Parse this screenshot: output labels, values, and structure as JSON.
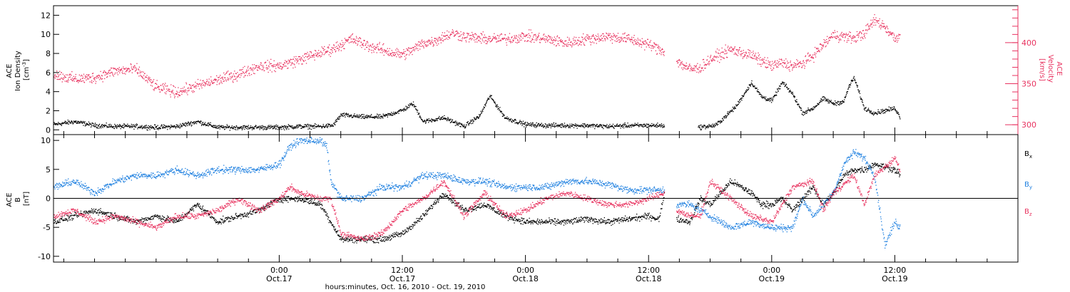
{
  "colors": {
    "black": "#000000",
    "red": "#e8325f",
    "blue": "#1f80e0"
  },
  "x_axis": {
    "range_hours": [
      -22,
      72
    ],
    "title": "hours:minutes, Oct. 16, 2010 - Oct. 19, 2010",
    "major_ticks": [
      {
        "hour": 0,
        "time": "0:00",
        "date": "Oct.17"
      },
      {
        "hour": 12,
        "time": "12:00",
        "date": "Oct.17"
      },
      {
        "hour": 24,
        "time": "0:00",
        "date": "Oct.18"
      },
      {
        "hour": 36,
        "time": "12:00",
        "date": "Oct.18"
      },
      {
        "hour": 48,
        "time": "0:00",
        "date": "Oct.19"
      },
      {
        "hour": 60,
        "time": "12:00",
        "date": "Oct.19"
      }
    ]
  },
  "chart_data": [
    {
      "type": "scatter",
      "panel": "top",
      "left_axis": {
        "label_lines": [
          "ACE",
          "Ion Density"
        ],
        "unit_base": "[cm",
        "unit_sup": "-3",
        "unit_end": "]",
        "ylim": [
          -0.5,
          13
        ],
        "ticks": [
          "0",
          "2",
          "4",
          "6",
          "8",
          "10",
          "12"
        ]
      },
      "right_axis": {
        "label_lines": [
          "ACE",
          "Velocity",
          "[km/s]"
        ],
        "ylim": [
          288,
          445
        ],
        "ticks": [
          "300",
          "350",
          "400"
        ]
      },
      "series": [
        {
          "color": "#000000",
          "axis": "left",
          "segments": [
            [
              -22,
              37.5
            ],
            [
              40.8,
              60.5
            ]
          ],
          "x": [
            -22,
            -20,
            -18,
            -16,
            -14,
            -12,
            -10,
            -8,
            -6,
            -4,
            -2,
            0,
            2,
            4,
            5.2,
            6,
            8,
            10,
            12,
            13,
            14,
            16,
            18,
            19.5,
            20.5,
            22,
            24,
            26,
            28,
            30,
            32,
            34,
            36,
            37.5,
            40.8,
            42.5,
            43.5,
            44.5,
            46,
            47,
            48,
            49,
            50,
            51,
            52,
            53,
            54,
            55,
            55.5,
            56,
            57,
            58,
            60,
            60.5
          ],
          "y": [
            0.6,
            0.9,
            0.5,
            0.4,
            0.4,
            0.3,
            0.4,
            0.9,
            0.3,
            0.3,
            0.3,
            0.3,
            0.4,
            0.4,
            0.5,
            1.6,
            1.4,
            1.4,
            2.1,
            2.8,
            0.9,
            1.3,
            0.4,
            1.5,
            3.6,
            1.3,
            0.6,
            0.5,
            0.5,
            0.5,
            0.4,
            0.5,
            0.5,
            0.5,
            0.3,
            0.5,
            1.5,
            2.5,
            5.0,
            3.5,
            3.1,
            5.0,
            3.8,
            1.8,
            2.3,
            3.3,
            2.8,
            3.0,
            4.6,
            5.5,
            2.3,
            1.8,
            2.3,
            1.3
          ],
          "noise": 0.35
        },
        {
          "color": "#e8325f",
          "axis": "right",
          "segments": [
            [
              -22,
              37.5
            ],
            [
              38.7,
              60.5
            ]
          ],
          "x": [
            -22,
            -20,
            -18,
            -16,
            -14,
            -12,
            -10,
            -8,
            -6,
            -4,
            -2,
            0,
            2,
            4,
            5,
            6,
            7,
            8,
            9,
            10,
            11,
            12,
            13,
            14,
            15,
            16,
            17,
            18,
            20,
            22,
            24,
            26,
            28,
            30,
            32,
            34,
            36,
            37.5,
            38.7,
            40,
            41,
            42,
            44,
            46,
            47,
            48,
            49,
            50,
            51,
            52,
            53,
            54,
            55,
            56,
            57,
            58,
            59,
            60,
            60.5
          ],
          "y": [
            362,
            356,
            358,
            366,
            368,
            346,
            340,
            348,
            355,
            362,
            372,
            372,
            380,
            388,
            392,
            398,
            405,
            400,
            395,
            392,
            388,
            386,
            392,
            400,
            402,
            408,
            412,
            408,
            405,
            405,
            408,
            405,
            400,
            405,
            408,
            405,
            398,
            390,
            378,
            368,
            370,
            380,
            392,
            385,
            378,
            372,
            376,
            372,
            375,
            385,
            398,
            410,
            408,
            406,
            412,
            428,
            420,
            405,
            412
          ],
          "noise": 10
        }
      ]
    },
    {
      "type": "scatter",
      "panel": "bottom",
      "left_axis": {
        "label_lines": [
          "ACE",
          "B",
          "[nT]"
        ],
        "ylim": [
          -11,
          11
        ],
        "ticks": [
          "-10",
          "-5",
          "0",
          "5",
          "10"
        ]
      },
      "legend": [
        {
          "text": "B",
          "sub": "x",
          "color": "#000000"
        },
        {
          "text": "B",
          "sub": "y",
          "color": "#1f80e0"
        },
        {
          "text": "B",
          "sub": "z",
          "color": "#e8325f"
        }
      ],
      "series": [
        {
          "name": "Bx",
          "color": "#000000",
          "segments": [
            [
              -22,
              37.5
            ],
            [
              38.7,
              60.5
            ]
          ],
          "x": [
            -22,
            -20,
            -18,
            -16,
            -14,
            -12,
            -10,
            -8,
            -6,
            -4,
            -2,
            0,
            2,
            4,
            5,
            6,
            8,
            10,
            12,
            14,
            16,
            18,
            20,
            22,
            24,
            26,
            28,
            30,
            32,
            34,
            36,
            37,
            37.5,
            38.7,
            40,
            41,
            42,
            43,
            44,
            45,
            46,
            47,
            48,
            49,
            50,
            51,
            52,
            53,
            54,
            55,
            56,
            57,
            58,
            60,
            60.5
          ],
          "y": [
            -4,
            -3,
            -2,
            -3,
            -4,
            -3,
            -4,
            -1,
            -4,
            -3,
            -2,
            0,
            0,
            -1,
            -4,
            -7,
            -7,
            -7,
            -6,
            -3,
            1,
            -2,
            -1,
            -3,
            -4,
            -4,
            -4,
            -3.5,
            -4,
            -3.5,
            -3,
            -3.5,
            1,
            -3.5,
            -4,
            0,
            -1,
            1,
            3,
            2,
            1,
            -1,
            -1,
            0,
            -2,
            0,
            2,
            -1,
            1,
            4,
            5,
            5,
            6,
            5,
            4
          ],
          "noise": 0.8
        },
        {
          "name": "By",
          "color": "#1f80e0",
          "segments": [
            [
              -22,
              37.5
            ],
            [
              38.7,
              60.5
            ]
          ],
          "x": [
            -22,
            -20,
            -18,
            -16,
            -14,
            -12,
            -10,
            -8,
            -6,
            -4,
            -2,
            0,
            1,
            2,
            3,
            4,
            4.6,
            5,
            6,
            7,
            8,
            10,
            12,
            14,
            16,
            18,
            20,
            22,
            24,
            26,
            28,
            30,
            32,
            34,
            36,
            37.5,
            38.7,
            40,
            42,
            44,
            46,
            48,
            50,
            51,
            52,
            54,
            55,
            56,
            57,
            58,
            59,
            60,
            60.5
          ],
          "y": [
            2,
            3,
            1,
            3,
            4,
            4,
            5,
            4,
            5,
            5,
            5,
            6,
            9,
            10,
            10,
            10,
            9,
            3,
            0,
            0,
            0,
            2,
            2,
            4,
            4,
            3,
            3,
            2,
            2,
            2,
            3,
            3,
            2.5,
            1.5,
            1.5,
            1.5,
            -1,
            -1,
            -3,
            -5,
            -4,
            -5,
            -5,
            0,
            -3,
            1,
            6,
            8,
            7,
            4,
            -8,
            -4,
            -5
          ],
          "noise": 0.9
        },
        {
          "name": "Bz",
          "color": "#e8325f",
          "segments": [
            [
              -22,
              37.5
            ],
            [
              38.7,
              60.5
            ]
          ],
          "x": [
            -22,
            -20,
            -18,
            -16,
            -14,
            -12,
            -10,
            -8,
            -6,
            -4,
            -2,
            0,
            1,
            2,
            4,
            5,
            6,
            8,
            10,
            12,
            14,
            16,
            18,
            20,
            22,
            24,
            26,
            28,
            30,
            32,
            34,
            36,
            37.5,
            38.7,
            40,
            41,
            42,
            44,
            46,
            48,
            49,
            50,
            52,
            53,
            54,
            56,
            57,
            58,
            60,
            60.5
          ],
          "y": [
            -3,
            -2,
            -4,
            -3,
            -4,
            -5,
            -3,
            -3,
            -2,
            0,
            -2,
            0,
            2,
            1,
            0,
            0,
            -6,
            -7,
            -6,
            -2,
            0,
            3,
            -3,
            1,
            -3,
            -2,
            0,
            1,
            0,
            -1,
            -1,
            0,
            1,
            -2,
            -3,
            -3,
            3,
            0,
            -3,
            -4,
            -1,
            2,
            3,
            -2,
            1,
            4,
            -1,
            4,
            7,
            5
          ],
          "noise": 0.8
        }
      ]
    }
  ]
}
